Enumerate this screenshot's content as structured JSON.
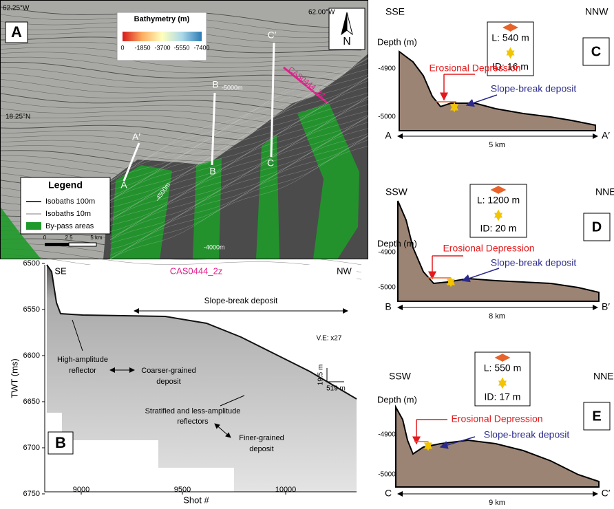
{
  "map": {
    "label": "A",
    "coords": [
      "62.25°W",
      "62.00°W",
      "18.25°N"
    ],
    "bathymetry": {
      "title": "Bathymetry (m)",
      "ticks": [
        "0",
        "-1850",
        "-3700",
        "-5550",
        "-7400"
      ]
    },
    "north": "N",
    "profiles": [
      "A′",
      "A",
      "B",
      "B",
      "C′",
      "C"
    ],
    "line_label": "CAS0444_2z",
    "contours": [
      "-5000m",
      "-4500m",
      "-4000m"
    ],
    "legend": {
      "title": "Legend",
      "items": [
        "Isobaths 100m",
        "Isobaths 10m",
        "By-pass areas"
      ],
      "scale": [
        "0",
        "2.5",
        "5 km"
      ]
    }
  },
  "seismic": {
    "label": "B",
    "title": "CAS0444_2z",
    "left": "SE",
    "right": "NW",
    "annotations": [
      "Slope-break deposit",
      "High-amplitude",
      "reflector",
      "Coarser-grained",
      "deposit",
      "Stratified and less-amplitude",
      "reflectors",
      "Finer-grained",
      "deposit"
    ],
    "scale": [
      "19.5 m",
      "519 m"
    ],
    "ve": "V.E: x27",
    "y_label": "TWT (ms)",
    "yticks": [
      "6500",
      "6550",
      "6600",
      "6650",
      "6700",
      "6750"
    ],
    "x_label": "Shot #",
    "xticks": [
      "9000",
      "9500",
      "10000"
    ]
  },
  "profiles": [
    {
      "label": "C",
      "left": "SSE",
      "right": "NNW",
      "length": "L: 540 m",
      "depth": "ID: 16 m",
      "y_label": "Depth (m)",
      "yticks": [
        "-4900",
        "-5000"
      ],
      "erosion": "Erosional Depression",
      "deposit": "Slope-break deposit",
      "start": "A",
      "end": "A′",
      "distance": "5 km"
    },
    {
      "label": "D",
      "left": "SSW",
      "right": "NNE",
      "length": "L: 1200 m",
      "depth": "ID: 20 m",
      "y_label": "Depth (m)",
      "yticks": [
        "-4900",
        "-5000"
      ],
      "erosion": "Erosional Depression",
      "deposit": "Slope-break deposit",
      "start": "B",
      "end": "B′",
      "distance": "8 km"
    },
    {
      "label": "E",
      "left": "SSW",
      "right": "NNE",
      "length": "L: 550 m",
      "depth": "ID: 17 m",
      "y_label": "Depth (m)",
      "yticks": [
        "-4900",
        "-5000"
      ],
      "erosion": "Erosional Depression",
      "deposit": "Slope-break deposit",
      "start": "C",
      "end": "C′",
      "distance": "9 km"
    }
  ]
}
